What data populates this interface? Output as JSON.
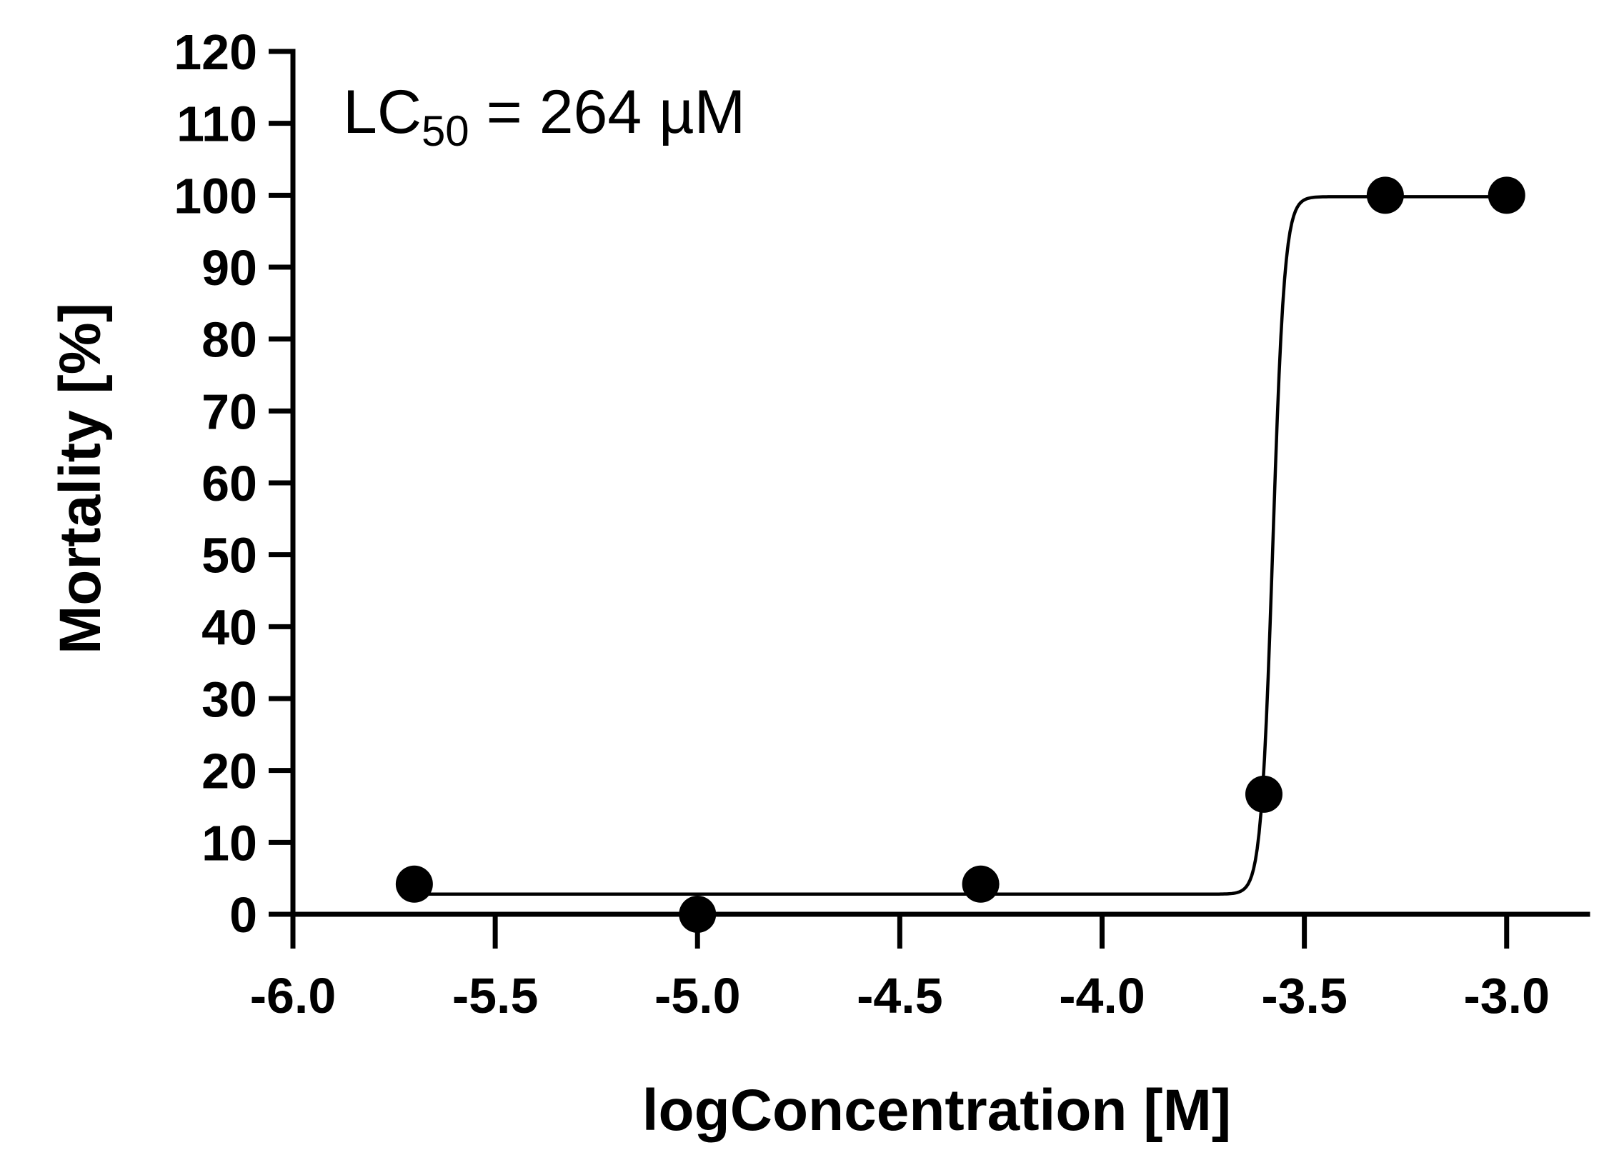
{
  "chart_data": {
    "type": "scatter",
    "xlabel": "logConcentration [M]",
    "ylabel": "Mortality [%]",
    "xlim": [
      -6.0,
      -2.8
    ],
    "ylim": [
      0,
      120
    ],
    "x_ticks": [
      -6.0,
      -5.5,
      -5.0,
      -4.5,
      -4.0,
      -3.5,
      -3.0
    ],
    "x_tick_labels": [
      "-6.0",
      "-5.5",
      "-5.0",
      "-4.5",
      "-4.0",
      "-3.5",
      "-3.0"
    ],
    "y_ticks": [
      0,
      10,
      20,
      30,
      40,
      50,
      60,
      70,
      80,
      90,
      100,
      110,
      120
    ],
    "y_tick_labels": [
      "0",
      "10",
      "20",
      "30",
      "40",
      "50",
      "60",
      "70",
      "80",
      "90",
      "100",
      "110",
      "120"
    ],
    "grid": false,
    "points": {
      "x": [
        -5.7,
        -5.0,
        -4.3,
        -3.6,
        -3.3,
        -3.0
      ],
      "y": [
        4.2,
        0.0,
        4.2,
        16.7,
        100.0,
        100.0
      ]
    },
    "fit_curve": {
      "type": "sigmoid",
      "bottom": 2.8,
      "top": 99.8,
      "logLC50": -3.578,
      "hill_slope": 30,
      "x_range": [
        -5.7,
        -3.0
      ]
    },
    "annotation": {
      "prefix": "LC",
      "subscript": "50",
      "suffix": " = 264 µM"
    },
    "colors": {
      "marker": "#000000",
      "line": "#000000",
      "axis": "#000000"
    }
  }
}
